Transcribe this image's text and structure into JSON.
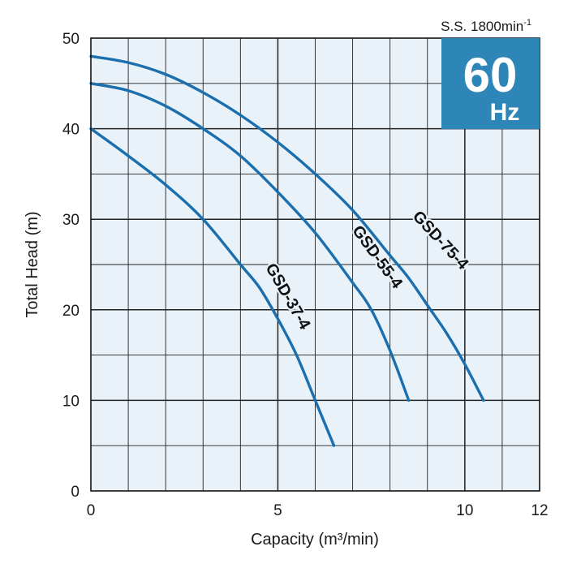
{
  "chart_data": {
    "type": "line",
    "title": "",
    "xlabel": "Capacity (m³/min)",
    "ylabel": "Total Head (m)",
    "xlim": [
      0,
      12
    ],
    "ylim": [
      0,
      50
    ],
    "x_ticks": [
      0,
      5,
      10,
      12
    ],
    "y_ticks": [
      0,
      10,
      20,
      30,
      40,
      50
    ],
    "x_minor_step": 1,
    "y_minor_step": 5,
    "grid": true,
    "plot_background": "#e8f2f8",
    "line_color": "#1b6fae",
    "speed_note": "S.S. 1800min",
    "speed_note_sup": "-1",
    "badge": {
      "value": "60",
      "unit": "Hz",
      "color": "#2e86b8"
    },
    "series": [
      {
        "name": "GSD-37-4",
        "x": [
          0,
          1,
          2,
          3,
          4,
          4.5,
          5,
          5.5,
          6,
          6.5
        ],
        "y": [
          40,
          37,
          33.8,
          30,
          25,
          22.5,
          19,
          15,
          10,
          5
        ]
      },
      {
        "name": "GSD-55-4",
        "x": [
          0,
          1,
          2,
          3,
          4,
          5,
          6,
          7,
          7.5,
          8,
          8.5
        ],
        "y": [
          45,
          44.2,
          42.5,
          40,
          37,
          33,
          28.5,
          23,
          20,
          15.5,
          10
        ]
      },
      {
        "name": "GSD-75-4",
        "x": [
          0,
          1,
          2,
          3,
          4,
          5,
          6,
          7,
          8,
          8.5,
          9,
          9.5,
          10,
          10.5
        ],
        "y": [
          48,
          47.3,
          46,
          44,
          41.5,
          38.5,
          35,
          31,
          26,
          23.5,
          20.5,
          17.5,
          14,
          10
        ]
      }
    ]
  }
}
